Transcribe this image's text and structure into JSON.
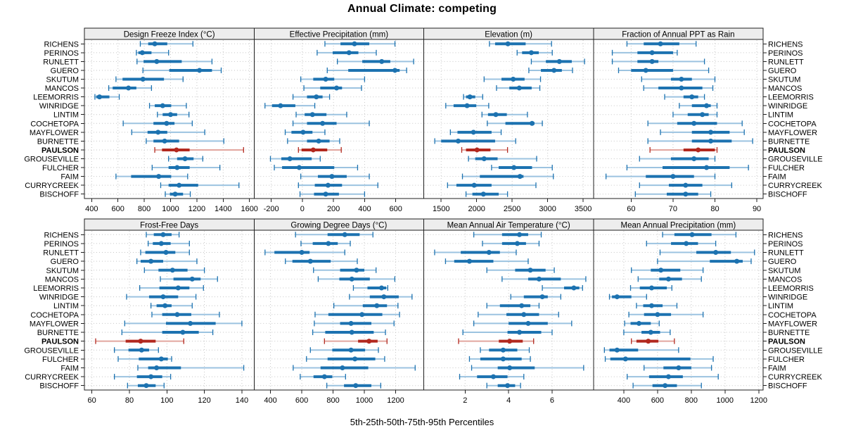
{
  "title": "Annual Climate: competing",
  "caption": "5th-25th-50th-75th-95th Percentiles",
  "colors": {
    "blue": "#1c72b0",
    "blue_light": "#9cc3e0",
    "red": "#b2281e",
    "red_light": "#e2a69f",
    "strip_bg": "#ededed",
    "grid": "#c6c6c6",
    "border": "#1f1f1f",
    "text": "#000000"
  },
  "chart_data": {
    "type": "dotplot-interval",
    "percentiles": [
      5,
      25,
      50,
      75,
      95
    ],
    "highlight_station": "PAULSON",
    "stations": [
      "RICHENS",
      "PERINOS",
      "RUNLETT",
      "GUERO",
      "SKUTUM",
      "MANCOS",
      "LEEMORRIS",
      "WINRIDGE",
      "LINTIM",
      "COCHETOPA",
      "MAYFLOWER",
      "BURNETTE",
      "PAULSON",
      "GROUSEVILLE",
      "FULCHER",
      "FAIM",
      "CURRYCREEK",
      "BISCHOFF"
    ],
    "panels": [
      {
        "title": "Design Freeze Index (°C)",
        "row": 0,
        "col": 0,
        "ticks": [
          400,
          600,
          800,
          1000,
          1200,
          1400,
          1600
        ],
        "xlim": [
          345,
          1635
        ],
        "values": [
          [
            770,
            830,
            880,
            975,
            1170
          ],
          [
            740,
            755,
            785,
            855,
            985
          ],
          [
            745,
            795,
            895,
            1085,
            1315
          ],
          [
            790,
            990,
            1220,
            1315,
            1385
          ],
          [
            585,
            635,
            790,
            950,
            1095
          ],
          [
            530,
            560,
            680,
            740,
            855
          ],
          [
            425,
            435,
            460,
            535,
            610
          ],
          [
            840,
            880,
            940,
            1005,
            1120
          ],
          [
            900,
            940,
            1000,
            1050,
            1140
          ],
          [
            640,
            870,
            970,
            1030,
            1165
          ],
          [
            705,
            825,
            905,
            975,
            1260
          ],
          [
            815,
            870,
            955,
            1065,
            1405
          ],
          [
            880,
            935,
            1045,
            1145,
            1555
          ],
          [
            985,
            1050,
            1110,
            1175,
            1245
          ],
          [
            860,
            985,
            1050,
            1145,
            1375
          ],
          [
            585,
            700,
            910,
            1005,
            1130
          ],
          [
            925,
            985,
            1065,
            1210,
            1520
          ],
          [
            960,
            995,
            1035,
            1095,
            1150
          ]
        ]
      },
      {
        "title": "Effective Precipitation (mm)",
        "row": 0,
        "col": 1,
        "ticks": [
          -200,
          0,
          200,
          400,
          600
        ],
        "xlim": [
          -310,
          780
        ],
        "values": [
          [
            145,
            245,
            335,
            430,
            595
          ],
          [
            95,
            195,
            300,
            360,
            475
          ],
          [
            225,
            385,
            510,
            565,
            715
          ],
          [
            160,
            295,
            595,
            625,
            670
          ],
          [
            -10,
            70,
            150,
            205,
            400
          ],
          [
            10,
            115,
            220,
            255,
            380
          ],
          [
            -60,
            30,
            90,
            130,
            175
          ],
          [
            -240,
            -195,
            -140,
            -45,
            80
          ],
          [
            -40,
            15,
            65,
            155,
            285
          ],
          [
            -60,
            30,
            130,
            220,
            430
          ],
          [
            -110,
            -70,
            5,
            65,
            145
          ],
          [
            -95,
            30,
            105,
            175,
            240
          ],
          [
            -25,
            -5,
            70,
            160,
            250
          ],
          [
            -205,
            -135,
            -80,
            60,
            115
          ],
          [
            -180,
            -130,
            -20,
            205,
            355
          ],
          [
            -10,
            100,
            190,
            285,
            430
          ],
          [
            -25,
            80,
            165,
            255,
            485
          ],
          [
            -15,
            75,
            150,
            235,
            400
          ]
        ]
      },
      {
        "title": "Elevation (m)",
        "row": 0,
        "col": 2,
        "ticks": [
          1500,
          2000,
          2500,
          3000,
          3500
        ],
        "xlim": [
          1255,
          3645
        ],
        "values": [
          [
            2180,
            2260,
            2440,
            2690,
            3055
          ],
          [
            2570,
            2640,
            2770,
            2875,
            3065
          ],
          [
            2770,
            2975,
            3165,
            3340,
            3520
          ],
          [
            2735,
            2905,
            3090,
            3200,
            3350
          ],
          [
            2105,
            2350,
            2515,
            2675,
            2900
          ],
          [
            2280,
            2460,
            2600,
            2775,
            2890
          ],
          [
            1815,
            1850,
            1905,
            1980,
            2085
          ],
          [
            1565,
            1675,
            1865,
            1995,
            2170
          ],
          [
            2075,
            2160,
            2270,
            2425,
            2715
          ],
          [
            2150,
            2405,
            2780,
            2815,
            2925
          ],
          [
            1630,
            1730,
            1955,
            2210,
            2345
          ],
          [
            1410,
            1500,
            1740,
            2260,
            2550
          ],
          [
            1790,
            1850,
            2005,
            2195,
            2435
          ],
          [
            1885,
            1980,
            2105,
            2295,
            2845
          ],
          [
            2210,
            2310,
            2525,
            2780,
            3065
          ],
          [
            1800,
            2045,
            2610,
            2660,
            3080
          ],
          [
            1590,
            1715,
            1965,
            2210,
            2835
          ],
          [
            1850,
            1940,
            2095,
            2310,
            2435
          ]
        ]
      },
      {
        "title": "Fraction of Annual PPT as Rain",
        "row": 0,
        "col": 3,
        "ticks": [
          60,
          70,
          80,
          90
        ],
        "xlim": [
          51,
          91.5
        ],
        "values": [
          [
            59,
            63,
            67,
            71.5,
            75.5
          ],
          [
            55.5,
            61.5,
            65,
            70,
            71
          ],
          [
            55.5,
            61.5,
            65,
            66.5,
            77.5
          ],
          [
            57,
            60,
            63.5,
            70,
            78.5
          ],
          [
            62.5,
            69.5,
            72,
            74.5,
            80
          ],
          [
            63,
            66.5,
            72,
            77,
            79.5
          ],
          [
            68,
            72.5,
            74.5,
            76,
            77.5
          ],
          [
            71.5,
            74.5,
            78,
            79,
            80.5
          ],
          [
            70,
            73.5,
            77,
            78.5,
            80.5
          ],
          [
            64,
            71,
            75,
            80.5,
            86.5
          ],
          [
            67,
            74.5,
            79,
            83.5,
            87
          ],
          [
            64,
            74.5,
            79,
            84,
            89
          ],
          [
            64.5,
            72.5,
            76,
            80,
            80.5
          ],
          [
            62,
            69.5,
            75,
            78.5,
            80
          ],
          [
            59,
            67.5,
            78,
            83.5,
            88
          ],
          [
            54,
            63.5,
            70,
            75,
            80
          ],
          [
            62,
            69,
            73,
            77,
            84
          ],
          [
            61,
            68.5,
            73,
            76,
            79
          ]
        ]
      },
      {
        "title": "Frost-Free Days",
        "row": 1,
        "col": 0,
        "ticks": [
          60,
          80,
          100,
          120,
          140
        ],
        "xlim": [
          56,
          146.5
        ],
        "values": [
          [
            89,
            93,
            98,
            102.5,
            106.5
          ],
          [
            90,
            92.5,
            97,
            102,
            112
          ],
          [
            86,
            88.5,
            99.5,
            104.5,
            112
          ],
          [
            84,
            86,
            91.5,
            98,
            116
          ],
          [
            88,
            95.5,
            103,
            111,
            120
          ],
          [
            96.5,
            103.5,
            113.5,
            118,
            127
          ],
          [
            85.5,
            96,
            106,
            112,
            119.5
          ],
          [
            78.5,
            90.5,
            98,
            106,
            115.5
          ],
          [
            91.5,
            94.5,
            99,
            102.5,
            113.5
          ],
          [
            92,
            97.5,
            105.5,
            113,
            128
          ],
          [
            77.5,
            99.5,
            112.5,
            126,
            140
          ],
          [
            76,
            97.5,
            108.5,
            117,
            124.5
          ],
          [
            62,
            78,
            86,
            94,
            109
          ],
          [
            72,
            79.5,
            86.5,
            90.5,
            95.5
          ],
          [
            74,
            85,
            97,
            100.5,
            102.5
          ],
          [
            84.5,
            90,
            94.5,
            107.5,
            141
          ],
          [
            72,
            84,
            91.5,
            97.5,
            102
          ],
          [
            79,
            84.5,
            89,
            94,
            98.5
          ]
        ]
      },
      {
        "title": "Growing Degree Days (°C)",
        "row": 1,
        "col": 1,
        "ticks": [
          400,
          600,
          800,
          1000,
          1200
        ],
        "xlim": [
          295,
          1380
        ],
        "values": [
          [
            560,
            765,
            875,
            970,
            1055
          ],
          [
            595,
            670,
            770,
            830,
            910
          ],
          [
            365,
            425,
            600,
            650,
            875
          ],
          [
            495,
            540,
            655,
            785,
            955
          ],
          [
            675,
            845,
            950,
            1000,
            1075
          ],
          [
            705,
            840,
            920,
            1035,
            1195
          ],
          [
            930,
            1020,
            1110,
            1140,
            1150
          ],
          [
            905,
            1035,
            1125,
            1220,
            1305
          ],
          [
            805,
            990,
            1080,
            1145,
            1215
          ],
          [
            685,
            770,
            985,
            1115,
            1225
          ],
          [
            680,
            845,
            915,
            1045,
            1190
          ],
          [
            670,
            750,
            920,
            1060,
            1135
          ],
          [
            745,
            960,
            1030,
            1085,
            1145
          ],
          [
            655,
            795,
            915,
            1005,
            1090
          ],
          [
            630,
            765,
            940,
            1070,
            1130
          ],
          [
            545,
            720,
            860,
            1025,
            1325
          ],
          [
            590,
            675,
            745,
            795,
            880
          ],
          [
            760,
            870,
            945,
            1045,
            1105
          ]
        ]
      },
      {
        "title": "Mean Annual Air Temperature (°C)",
        "row": 1,
        "col": 2,
        "ticks": [
          2,
          4,
          6
        ],
        "xlim": [
          0.1,
          7.9
        ],
        "values": [
          [
            2.4,
            3.7,
            4.5,
            4.9,
            5.5
          ],
          [
            2.8,
            3.7,
            4.4,
            4.8,
            5.4
          ],
          [
            0.6,
            1.8,
            3.1,
            3.6,
            4.35
          ],
          [
            1.1,
            1.5,
            2.2,
            3.3,
            4.9
          ],
          [
            3.0,
            4.3,
            5.0,
            5.7,
            6.1
          ],
          [
            3.7,
            4.9,
            5.4,
            6.4,
            7.55
          ],
          [
            5.55,
            6.55,
            7.0,
            7.25,
            7.4
          ],
          [
            4.1,
            4.7,
            5.55,
            5.8,
            6.4
          ],
          [
            3.0,
            3.6,
            4.6,
            5.0,
            5.4
          ],
          [
            2.6,
            3.9,
            4.7,
            5.4,
            6.3
          ],
          [
            2.4,
            4.0,
            4.9,
            5.8,
            6.9
          ],
          [
            1.9,
            3.95,
            4.5,
            5.5,
            6.0
          ],
          [
            1.7,
            3.55,
            4.05,
            4.65,
            5.15
          ],
          [
            2.7,
            3.1,
            3.75,
            4.4,
            4.95
          ],
          [
            2.2,
            2.7,
            3.75,
            4.6,
            5.0
          ],
          [
            2.3,
            3.5,
            4.05,
            5.2,
            7.45
          ],
          [
            1.75,
            2.55,
            3.3,
            3.95,
            4.7
          ],
          [
            3.0,
            3.5,
            3.95,
            4.3,
            4.55
          ]
        ]
      },
      {
        "title": "Mean Annual Precipitation (mm)",
        "row": 1,
        "col": 3,
        "ticks": [
          400,
          600,
          800,
          1000,
          1200
        ],
        "xlim": [
          220,
          1226
        ],
        "values": [
          [
            630,
            700,
            805,
            920,
            1065
          ],
          [
            535,
            680,
            770,
            840,
            945
          ],
          [
            615,
            830,
            945,
            1035,
            1175
          ],
          [
            600,
            910,
            1070,
            1105,
            1155
          ],
          [
            445,
            560,
            620,
            735,
            870
          ],
          [
            485,
            610,
            665,
            745,
            860
          ],
          [
            440,
            495,
            565,
            655,
            685
          ],
          [
            315,
            330,
            360,
            445,
            535
          ],
          [
            475,
            515,
            565,
            630,
            715
          ],
          [
            430,
            520,
            600,
            680,
            870
          ],
          [
            405,
            440,
            490,
            560,
            610
          ],
          [
            400,
            505,
            560,
            615,
            675
          ],
          [
            445,
            475,
            545,
            605,
            700
          ],
          [
            285,
            315,
            360,
            485,
            725
          ],
          [
            290,
            320,
            410,
            795,
            930
          ],
          [
            520,
            635,
            725,
            800,
            920
          ],
          [
            420,
            550,
            665,
            750,
            960
          ],
          [
            455,
            570,
            645,
            715,
            860
          ]
        ]
      }
    ]
  }
}
